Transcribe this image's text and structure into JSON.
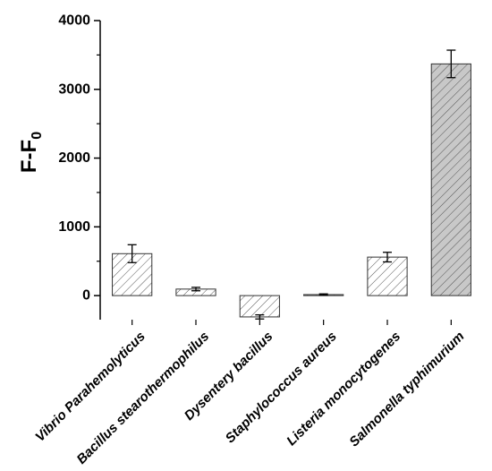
{
  "chart_data": {
    "type": "bar",
    "title": "",
    "ylabel": "F-F",
    "ylabel_subscript": "0",
    "xlabel": "",
    "ylim": [
      -350,
      4000
    ],
    "yticks": [
      "0",
      "1000",
      "2000",
      "3000",
      "4000"
    ],
    "grid": false,
    "categories": [
      "Vibrio Parahemolyticus",
      "Bacillus stearothermophilus",
      "Dysentery bacillus",
      "Staphylococcus aureus",
      "Listeria monocytogenes",
      "Salmonella typhimurium"
    ],
    "values": [
      610,
      95,
      -310,
      15,
      560,
      3370
    ],
    "errors": [
      130,
      25,
      30,
      10,
      70,
      200
    ],
    "bar_fill": [
      "#ffffff",
      "#ffffff",
      "#ffffff",
      "#ffffff",
      "#ffffff",
      "#c8c8c8"
    ],
    "hatch_color": "#555555"
  }
}
